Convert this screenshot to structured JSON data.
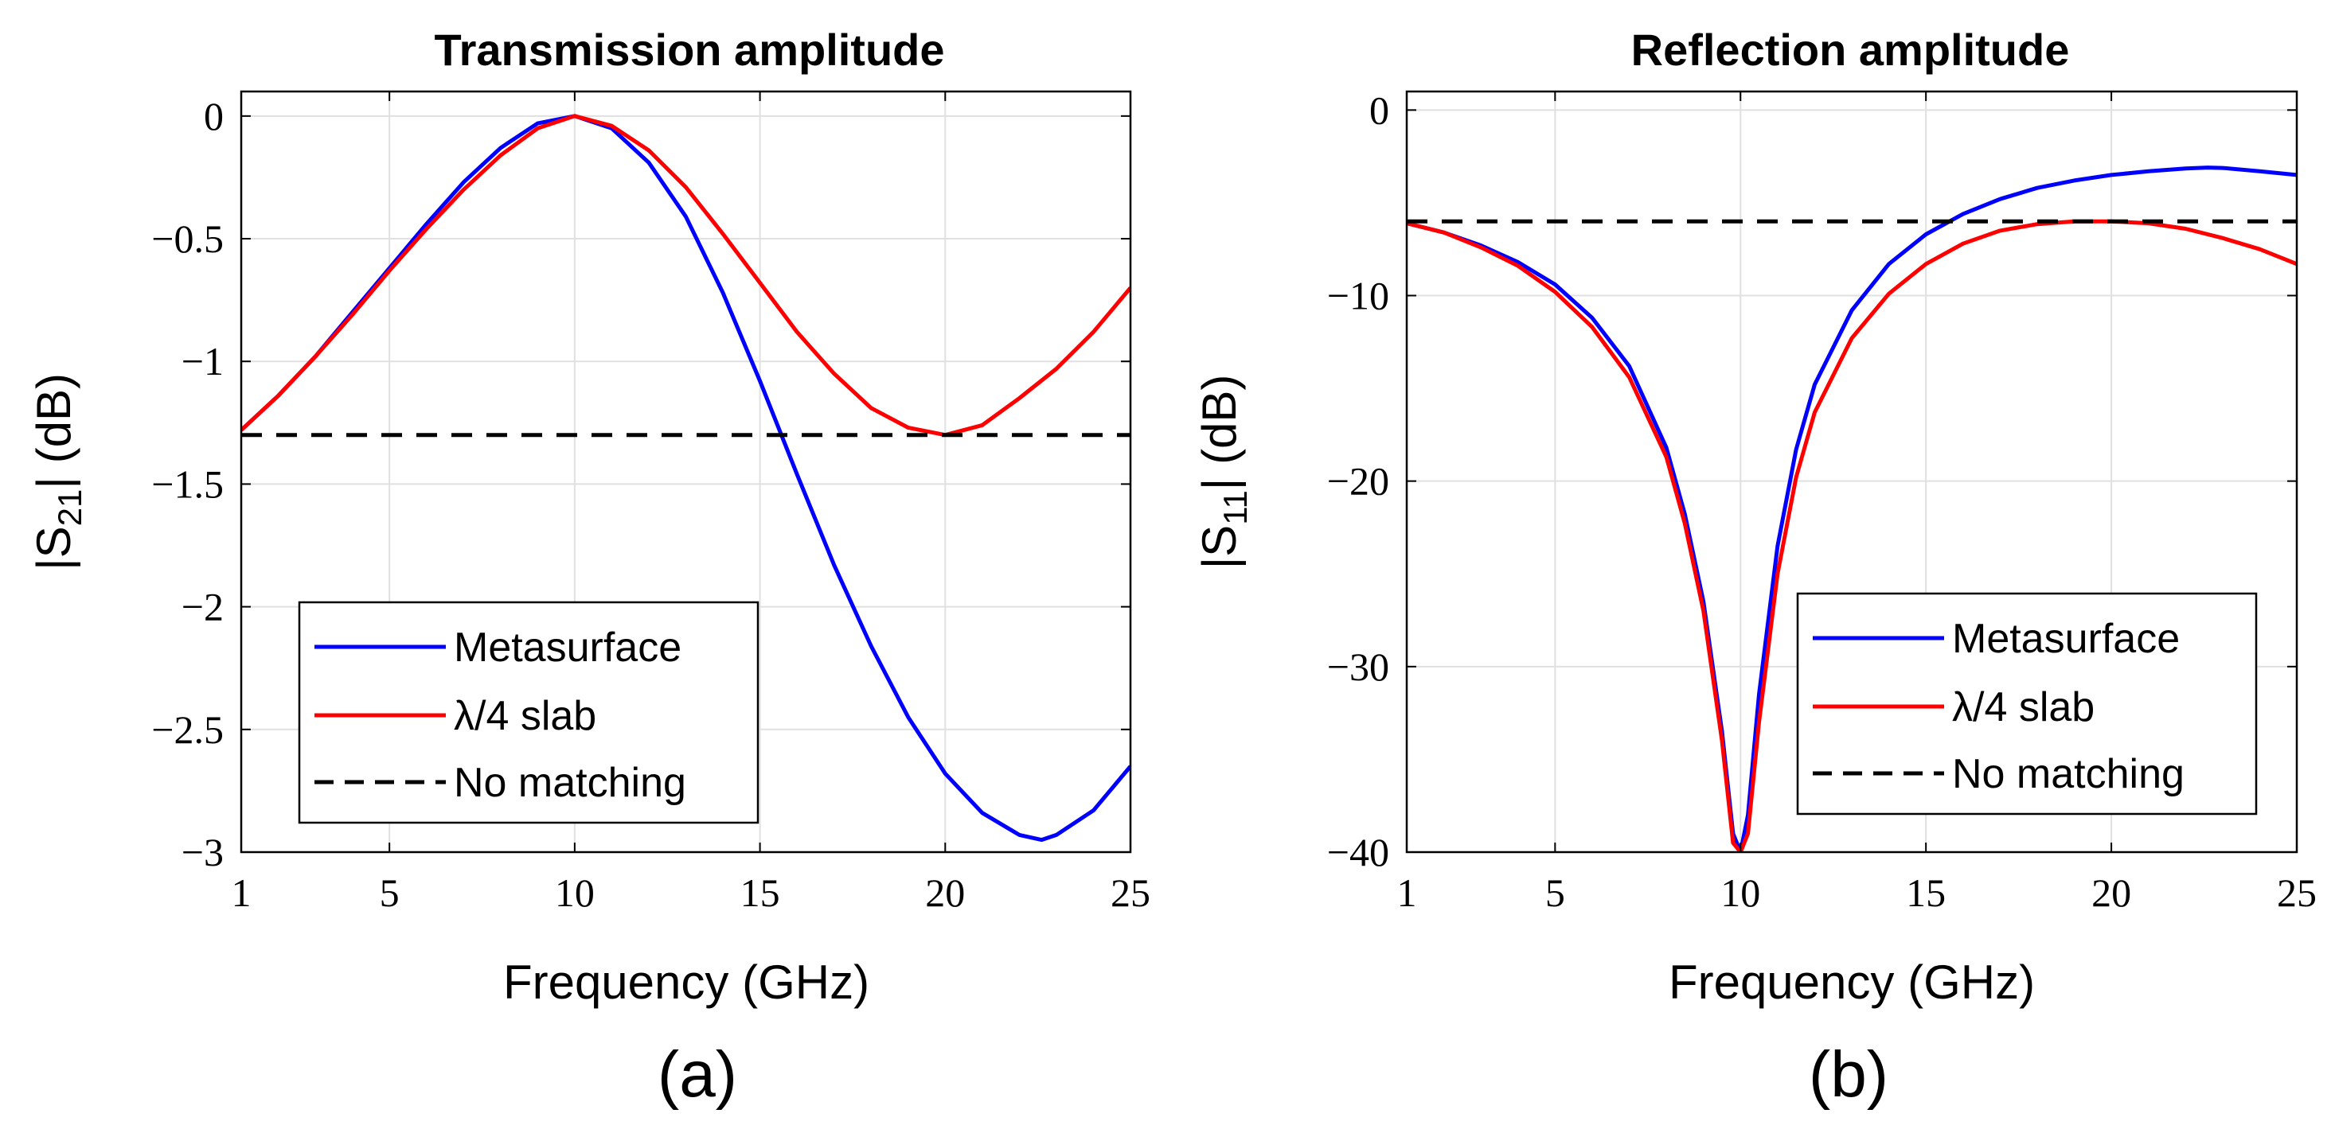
{
  "chart_data": [
    {
      "type": "line",
      "title": "Transmission amplitude",
      "xlabel": "Frequency (GHz)",
      "ylabel": {
        "main": "|S",
        "sub": "21",
        "tail": "| (dB)"
      },
      "caption": "(a)",
      "xlim": [
        1,
        25
      ],
      "ylim": [
        -3,
        0.1
      ],
      "xticks": [
        1,
        5,
        10,
        15,
        20,
        25
      ],
      "xtick_labels": [
        "1",
        "5",
        "10",
        "15",
        "20",
        "25"
      ],
      "yticks": [
        0,
        -0.5,
        -1,
        -1.5,
        -2,
        -2.5,
        -3
      ],
      "ytick_labels": [
        "0",
        "−0.5",
        "−1",
        "−1.5",
        "−2",
        "−2.5",
        "−3"
      ],
      "grid": true,
      "legend_position": "bottom-left",
      "series": [
        {
          "name": "Metasurface",
          "color": "#0000ff",
          "dash": "solid",
          "x": [
            1,
            2,
            3,
            4,
            5,
            6,
            7,
            8,
            9,
            10,
            11,
            12,
            13,
            14,
            15,
            16,
            17,
            18,
            19,
            20,
            21,
            22,
            22.6,
            23,
            24,
            25
          ],
          "y": [
            -1.28,
            -1.14,
            -0.98,
            -0.8,
            -0.62,
            -0.44,
            -0.27,
            -0.13,
            -0.03,
            0.0,
            -0.05,
            -0.19,
            -0.41,
            -0.72,
            -1.08,
            -1.46,
            -1.83,
            -2.16,
            -2.45,
            -2.68,
            -2.84,
            -2.93,
            -2.95,
            -2.93,
            -2.83,
            -2.65
          ]
        },
        {
          "name": "λ/4 slab",
          "color": "#ff0000",
          "dash": "solid",
          "x": [
            1,
            2,
            3,
            4,
            5,
            6,
            7,
            8,
            9,
            10,
            11,
            12,
            13,
            14,
            15,
            16,
            17,
            18,
            19,
            20,
            21,
            22,
            23,
            24,
            25
          ],
          "y": [
            -1.28,
            -1.14,
            -0.98,
            -0.81,
            -0.63,
            -0.46,
            -0.3,
            -0.16,
            -0.05,
            0.0,
            -0.04,
            -0.14,
            -0.29,
            -0.48,
            -0.68,
            -0.88,
            -1.05,
            -1.19,
            -1.27,
            -1.3,
            -1.26,
            -1.15,
            -1.03,
            -0.88,
            -0.7
          ]
        },
        {
          "name": "No matching",
          "color": "#000000",
          "dash": "dashed",
          "x": [
            1,
            25
          ],
          "y": [
            -1.3,
            -1.3
          ]
        }
      ]
    },
    {
      "type": "line",
      "title": "Reflection amplitude",
      "xlabel": "Frequency (GHz)",
      "ylabel": {
        "main": "|S",
        "sub": "11",
        "tail": "| (dB)"
      },
      "caption": "(b)",
      "xlim": [
        1,
        25
      ],
      "ylim": [
        -40,
        1
      ],
      "xticks": [
        1,
        5,
        10,
        15,
        20,
        25
      ],
      "xtick_labels": [
        "1",
        "5",
        "10",
        "15",
        "20",
        "25"
      ],
      "yticks": [
        0,
        -10,
        -20,
        -30,
        -40
      ],
      "ytick_labels": [
        "0",
        "−10",
        "−20",
        "−30",
        "−40"
      ],
      "grid": true,
      "legend_position": "bottom-right",
      "series": [
        {
          "name": "Metasurface",
          "color": "#0000ff",
          "dash": "solid",
          "x": [
            1,
            2,
            3,
            4,
            5,
            6,
            7,
            8,
            8.5,
            9,
            9.5,
            9.8,
            10,
            10.2,
            10.5,
            11,
            11.5,
            12,
            13,
            14,
            15,
            16,
            17,
            18,
            19,
            20,
            21,
            22,
            22.6,
            23,
            24,
            25
          ],
          "y": [
            -6.1,
            -6.6,
            -7.3,
            -8.2,
            -9.4,
            -11.2,
            -13.8,
            -18.2,
            -21.8,
            -26.5,
            -33.5,
            -39.0,
            -40.0,
            -38.0,
            -31.5,
            -23.5,
            -18.3,
            -14.8,
            -10.8,
            -8.3,
            -6.7,
            -5.6,
            -4.8,
            -4.2,
            -3.8,
            -3.5,
            -3.3,
            -3.15,
            -3.1,
            -3.12,
            -3.3,
            -3.5
          ]
        },
        {
          "name": "λ/4 slab",
          "color": "#ff0000",
          "dash": "solid",
          "x": [
            1,
            2,
            3,
            4,
            5,
            6,
            7,
            8,
            8.5,
            9,
            9.5,
            9.8,
            10,
            10.2,
            10.5,
            11,
            11.5,
            12,
            13,
            14,
            15,
            16,
            17,
            18,
            19,
            20,
            21,
            22,
            23,
            24,
            25
          ],
          "y": [
            -6.1,
            -6.6,
            -7.4,
            -8.4,
            -9.8,
            -11.7,
            -14.4,
            -18.7,
            -22.3,
            -27.0,
            -34.0,
            -39.5,
            -40.0,
            -39.0,
            -33.0,
            -25.0,
            -19.8,
            -16.3,
            -12.3,
            -9.9,
            -8.3,
            -7.2,
            -6.5,
            -6.15,
            -6.0,
            -6.0,
            -6.1,
            -6.4,
            -6.9,
            -7.5,
            -8.3
          ]
        },
        {
          "name": "No matching",
          "color": "#000000",
          "dash": "dashed",
          "x": [
            1,
            25
          ],
          "y": [
            -6.0,
            -6.0
          ]
        }
      ]
    }
  ]
}
